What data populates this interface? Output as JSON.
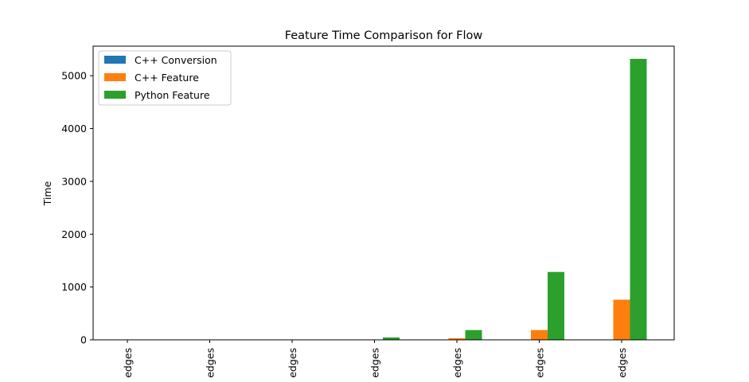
{
  "chart_data": {
    "type": "bar",
    "title": "Feature Time Comparison for Flow",
    "ylabel": "Time",
    "xlabel": "",
    "ylim": [
      0,
      5560
    ],
    "yticks": [
      0,
      1000,
      2000,
      3000,
      4000,
      5000
    ],
    "ytick_labels": [
      "0",
      "1000",
      "2000",
      "3000",
      "4000",
      "5000"
    ],
    "categories": [
      "edges",
      "edges",
      "edges",
      "edges",
      "edges",
      "edges",
      "edges"
    ],
    "legend_position": "top-left",
    "grid": false,
    "series": [
      {
        "name": "C++ Conversion",
        "color": "#1f77b4",
        "values": [
          0,
          0,
          0,
          0,
          0,
          0,
          0
        ]
      },
      {
        "name": "C++ Feature",
        "color": "#ff7f0e",
        "values": [
          0,
          0,
          1,
          5,
          30,
          185,
          760
        ]
      },
      {
        "name": "Python Feature",
        "color": "#2ca02c",
        "values": [
          0,
          1,
          5,
          45,
          185,
          1285,
          5320
        ]
      }
    ]
  }
}
